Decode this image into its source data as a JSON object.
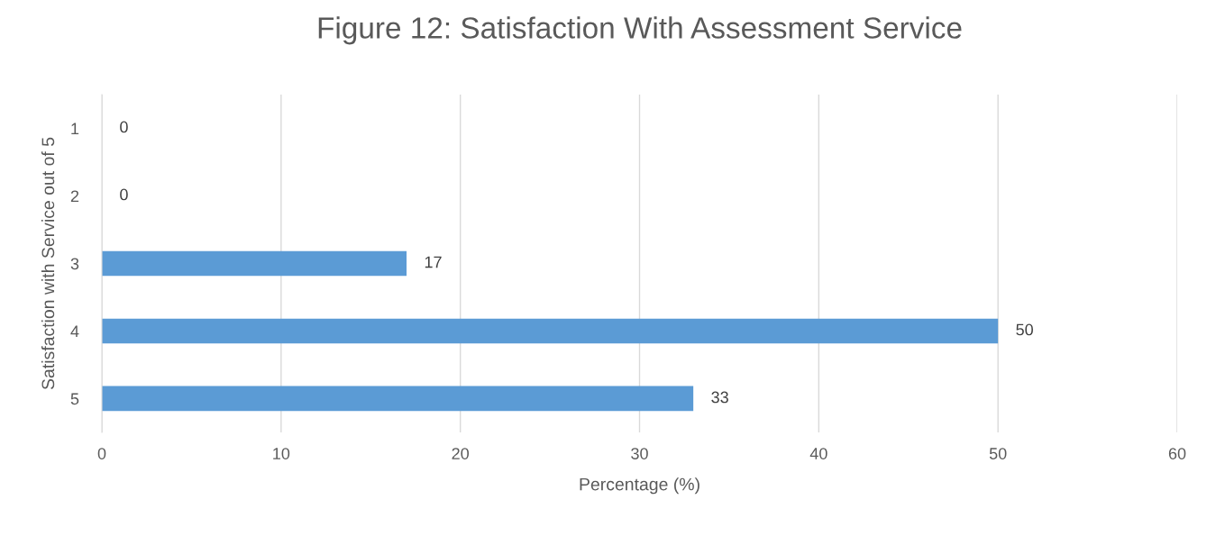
{
  "chart_data": {
    "type": "bar",
    "orientation": "horizontal",
    "title": "Figure 12: Satisfaction With Assessment Service",
    "xlabel": "Percentage (%)",
    "ylabel": "Satisfaction with Service out of 5",
    "categories": [
      "1",
      "2",
      "3",
      "4",
      "5"
    ],
    "values": [
      0,
      0,
      17,
      50,
      33
    ],
    "color": "#5b9bd5",
    "xlim": [
      0,
      60
    ],
    "xticks": [
      0,
      10,
      20,
      30,
      40,
      50,
      60
    ],
    "grid": "x",
    "data_labels": true
  }
}
